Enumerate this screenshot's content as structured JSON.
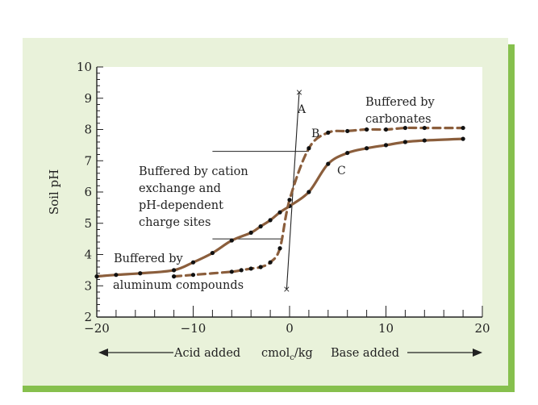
{
  "colors": {
    "panel_bg": "#e9f2da",
    "panel_border": "#86c04d",
    "curve": "#8b5e3c",
    "axis": "#222222"
  },
  "chart_data": {
    "type": "line",
    "xlabel": "",
    "ylabel": "Soil pH",
    "xlim": [
      -20,
      20
    ],
    "ylim": [
      2,
      10
    ],
    "x_ticks": [
      "−20",
      "−10",
      "0",
      "10",
      "20"
    ],
    "y_ticks": [
      "2",
      "3",
      "4",
      "5",
      "6",
      "7",
      "8",
      "9",
      "10"
    ],
    "bottom_caption": {
      "acid": "Acid added",
      "unit": "cmol",
      "unit_sub": "c",
      "unit_suffix": "/kg",
      "base": "Base added"
    },
    "series": [
      {
        "style": "solid",
        "points": [
          [
            -20,
            3.3
          ],
          [
            -18,
            3.35
          ],
          [
            -15.5,
            3.4
          ],
          [
            -12,
            3.5
          ],
          [
            -10,
            3.75
          ],
          [
            -8,
            4.05
          ],
          [
            -6,
            4.45
          ],
          [
            -4,
            4.7
          ],
          [
            -3,
            4.9
          ],
          [
            -2,
            5.1
          ],
          [
            -1,
            5.35
          ],
          [
            0,
            5.55
          ],
          [
            2,
            6.0
          ],
          [
            4,
            6.9
          ],
          [
            6,
            7.25
          ],
          [
            8,
            7.4
          ],
          [
            10,
            7.5
          ],
          [
            12,
            7.6
          ],
          [
            14,
            7.65
          ],
          [
            18,
            7.7
          ]
        ]
      },
      {
        "style": "dashed",
        "points": [
          [
            -12,
            3.3
          ],
          [
            -10,
            3.35
          ],
          [
            -6,
            3.45
          ],
          [
            -5,
            3.5
          ],
          [
            -4,
            3.55
          ],
          [
            -3,
            3.6
          ],
          [
            -2,
            3.75
          ],
          [
            -1,
            4.2
          ],
          [
            0,
            5.75
          ],
          [
            2,
            7.4
          ],
          [
            4,
            7.9
          ],
          [
            6,
            7.95
          ],
          [
            8,
            8.0
          ],
          [
            10,
            8.0
          ],
          [
            12,
            8.05
          ],
          [
            14,
            8.05
          ],
          [
            18,
            8.05
          ]
        ]
      }
    ],
    "reference_line": {
      "from": [
        -0.3,
        2.9
      ],
      "to": [
        1,
        9.2
      ]
    },
    "guide_lines": [
      {
        "y": 7.3,
        "x_from": -8,
        "x_to": 2
      },
      {
        "y": 4.5,
        "x_from": -8,
        "x_to": -0.8
      }
    ],
    "point_labels": {
      "A": "A",
      "B": "B",
      "C": "C"
    },
    "annotations": {
      "cation": [
        "Buffered by cation",
        "exchange and",
        "pH-dependent",
        "charge sites"
      ],
      "aluminum_1": "Buffered by",
      "aluminum_2": "aluminum compounds",
      "carbonates": [
        "Buffered by",
        "carbonates"
      ]
    }
  }
}
